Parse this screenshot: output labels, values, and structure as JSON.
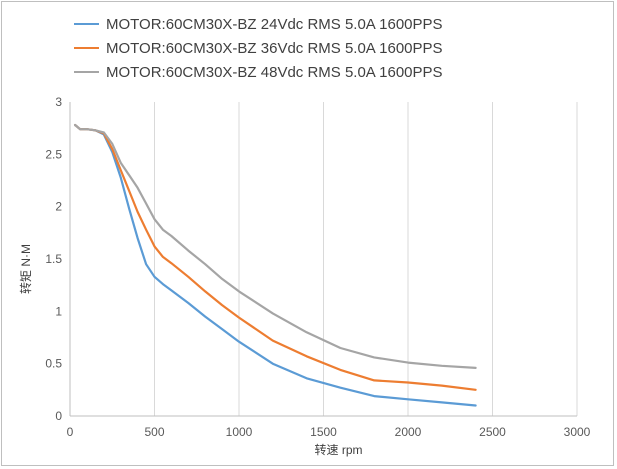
{
  "chart_data": {
    "type": "line",
    "title": "",
    "xlabel": "转速 rpm",
    "ylabel": "转矩 N·M",
    "xlim": [
      0,
      3000
    ],
    "ylim": [
      0,
      3
    ],
    "x_ticks": [
      0,
      500,
      1000,
      1500,
      2000,
      2500,
      3000
    ],
    "y_ticks": [
      0,
      0.5,
      1,
      1.5,
      2,
      2.5,
      3
    ],
    "x_tick_labels": [
      "0",
      "500",
      "1000",
      "1500",
      "2000",
      "2500",
      "3000"
    ],
    "y_tick_labels": [
      "0",
      "0.5",
      "1",
      "1.5",
      "2",
      "2.5",
      "3"
    ],
    "grid": "vertical",
    "legend_position": "top-left",
    "series": [
      {
        "name": "MOTOR:60CM30X-BZ 24Vdc RMS 5.0A 1600PPS",
        "color": "#5b9bd5",
        "x": [
          30,
          60,
          100,
          150,
          200,
          250,
          300,
          350,
          400,
          450,
          500,
          550,
          600,
          700,
          800,
          900,
          1000,
          1200,
          1400,
          1600,
          1800,
          2000,
          2200,
          2400
        ],
        "y": [
          2.78,
          2.74,
          2.74,
          2.73,
          2.69,
          2.52,
          2.28,
          1.98,
          1.7,
          1.45,
          1.33,
          1.26,
          1.2,
          1.08,
          0.95,
          0.83,
          0.71,
          0.5,
          0.36,
          0.27,
          0.19,
          0.16,
          0.13,
          0.1
        ]
      },
      {
        "name": "MOTOR:60CM30X-BZ 36Vdc RMS 5.0A 1600PPS",
        "color": "#ed7d31",
        "x": [
          30,
          60,
          100,
          150,
          200,
          250,
          300,
          350,
          400,
          450,
          500,
          550,
          600,
          700,
          800,
          900,
          1000,
          1200,
          1400,
          1600,
          1800,
          2000,
          2200,
          2400
        ],
        "y": [
          2.78,
          2.74,
          2.74,
          2.73,
          2.7,
          2.55,
          2.35,
          2.15,
          1.95,
          1.78,
          1.62,
          1.52,
          1.46,
          1.33,
          1.19,
          1.06,
          0.94,
          0.72,
          0.57,
          0.44,
          0.34,
          0.32,
          0.29,
          0.25
        ]
      },
      {
        "name": "MOTOR:60CM30X-BZ 48Vdc RMS 5.0A 1600PPS",
        "color": "#a5a5a5",
        "x": [
          30,
          60,
          100,
          150,
          200,
          250,
          300,
          350,
          400,
          450,
          500,
          550,
          600,
          700,
          800,
          900,
          1000,
          1200,
          1400,
          1600,
          1800,
          2000,
          2200,
          2400
        ],
        "y": [
          2.78,
          2.74,
          2.74,
          2.73,
          2.71,
          2.6,
          2.42,
          2.3,
          2.18,
          2.03,
          1.88,
          1.78,
          1.72,
          1.58,
          1.45,
          1.31,
          1.19,
          0.98,
          0.8,
          0.65,
          0.56,
          0.51,
          0.48,
          0.46
        ]
      }
    ]
  }
}
